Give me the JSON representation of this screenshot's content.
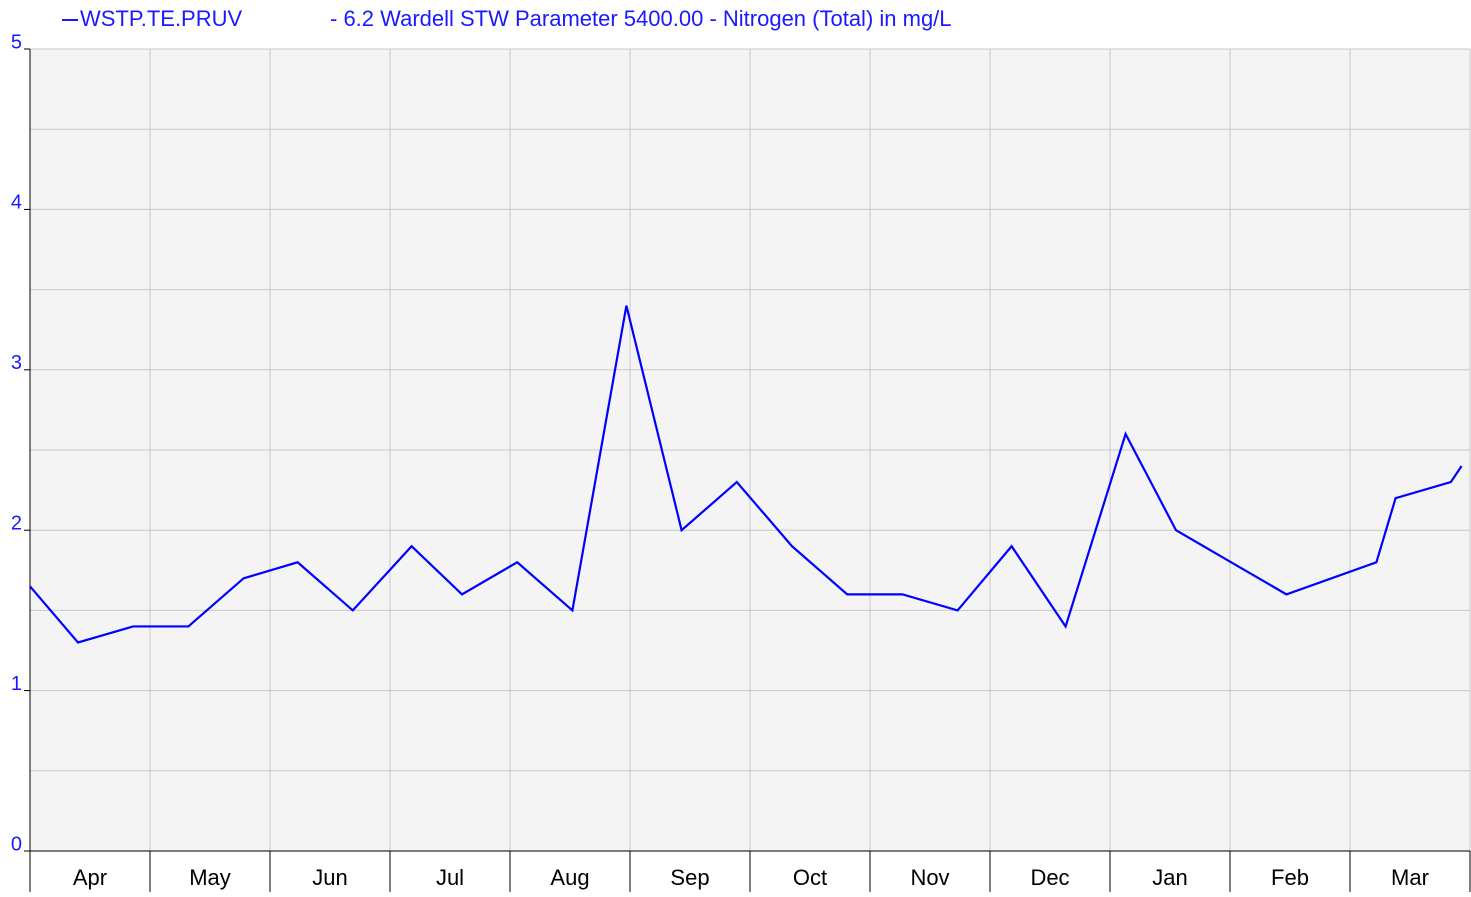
{
  "chart_data": {
    "type": "line",
    "title": "- 6.2 Wardell STW Parameter 5400.00 - Nitrogen (Total) in mg/L",
    "categories": [
      "Apr",
      "May",
      "Jun",
      "Jul",
      "Aug",
      "Sep",
      "Oct",
      "Nov",
      "Dec",
      "Jan",
      "Feb",
      "Mar"
    ],
    "x": [
      0,
      0.4,
      0.86,
      1.32,
      1.78,
      2.23,
      2.69,
      3.18,
      3.6,
      4.06,
      4.52,
      4.97,
      5.43,
      5.89,
      6.35,
      6.81,
      7.27,
      7.73,
      8.18,
      8.63,
      9.13,
      9.55,
      10.01,
      10.47,
      11.22,
      11.38,
      11.84,
      11.93
    ],
    "series": [
      {
        "name": "WSTP.TE.PRUV",
        "color": "#0000ff",
        "values": [
          1.65,
          1.3,
          1.4,
          1.4,
          1.7,
          1.8,
          1.5,
          1.9,
          1.6,
          1.8,
          1.5,
          3.4,
          2.0,
          2.3,
          1.9,
          1.6,
          1.6,
          1.5,
          1.9,
          1.4,
          2.6,
          2.0,
          1.8,
          1.6,
          1.8,
          2.2,
          2.3,
          2.4
        ]
      }
    ],
    "xlim": [
      0,
      12
    ],
    "xticks": [
      0,
      1,
      2,
      3,
      4,
      5,
      6,
      7,
      8,
      9,
      10,
      11,
      12
    ],
    "ylim": [
      0,
      5
    ],
    "yticks": [
      0,
      1,
      2,
      3,
      4,
      5
    ],
    "yminor": [
      0.5,
      1.5,
      2.5,
      3.5,
      4.5
    ],
    "grid": true
  }
}
